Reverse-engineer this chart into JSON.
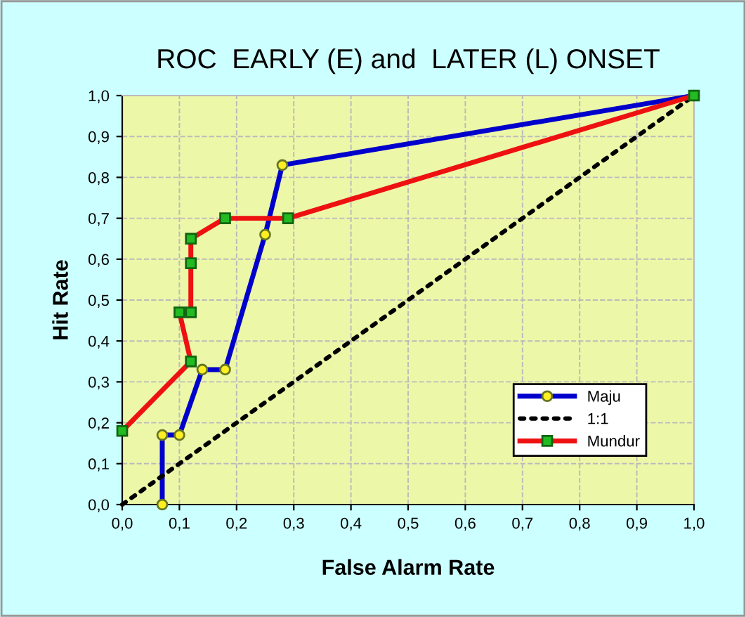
{
  "chart_data": {
    "type": "line",
    "title": "ROC  EARLY (E) and  LATER (L) ONSET",
    "xlabel": "False Alarm Rate",
    "ylabel": "Hit Rate",
    "xlim": [
      0,
      1
    ],
    "ylim": [
      0,
      1
    ],
    "xticks": [
      {
        "value": 0,
        "label": "0,0"
      },
      {
        "value": 0.1,
        "label": "0,1"
      },
      {
        "value": 0.2,
        "label": "0,2"
      },
      {
        "value": 0.3,
        "label": "0,3"
      },
      {
        "value": 0.4,
        "label": "0,4"
      },
      {
        "value": 0.5,
        "label": "0,5"
      },
      {
        "value": 0.6,
        "label": "0,6"
      },
      {
        "value": 0.7,
        "label": "0,7"
      },
      {
        "value": 0.8,
        "label": "0,8"
      },
      {
        "value": 0.9,
        "label": "0,9"
      },
      {
        "value": 1,
        "label": "1,0"
      }
    ],
    "yticks": [
      {
        "value": 0,
        "label": "0,0"
      },
      {
        "value": 0.1,
        "label": "0,1"
      },
      {
        "value": 0.2,
        "label": "0,2"
      },
      {
        "value": 0.3,
        "label": "0,3"
      },
      {
        "value": 0.4,
        "label": "0,4"
      },
      {
        "value": 0.5,
        "label": "0,5"
      },
      {
        "value": 0.6,
        "label": "0,6"
      },
      {
        "value": 0.7,
        "label": "0,7"
      },
      {
        "value": 0.8,
        "label": "0,8"
      },
      {
        "value": 0.9,
        "label": "0,9"
      },
      {
        "value": 1,
        "label": "1,0"
      }
    ],
    "grid": true,
    "legend": "bottom right",
    "series": [
      {
        "name": "Maju",
        "color": "#0000cc",
        "marker": "circle",
        "line_style": "solid",
        "x": [
          0.07,
          0.07,
          0.1,
          0.14,
          0.18,
          0.25,
          0.28,
          1
        ],
        "values": [
          0,
          0.17,
          0.17,
          0.33,
          0.33,
          0.66,
          0.83,
          1
        ]
      },
      {
        "name": "1:1",
        "color": "#000000",
        "line_style": "dotted",
        "x": [
          0,
          1
        ],
        "values": [
          0,
          1
        ]
      },
      {
        "name": "Mundur",
        "color": "#ee1111",
        "marker": "square",
        "line_style": "solid",
        "x": [
          0,
          0.12,
          0.1,
          0.12,
          0.12,
          0.12,
          0.18,
          0.29,
          1
        ],
        "values": [
          0.18,
          0.35,
          0.47,
          0.47,
          0.59,
          0.65,
          0.7,
          0.7,
          1
        ]
      }
    ]
  }
}
